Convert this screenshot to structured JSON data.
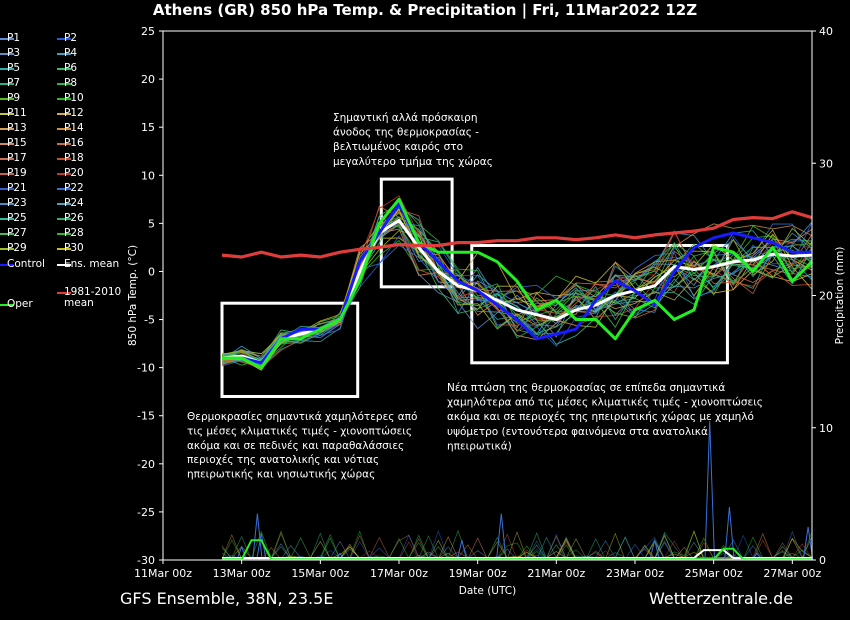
{
  "header": {
    "title": "Athens  (GR)  850 hPa Temp. & Precipitation | Fri, 11Mar2022 12Z"
  },
  "footer": {
    "left": "GFS Ensemble, 38N, 23.5E",
    "right": "Wetterzentrale.de"
  },
  "legend": {
    "members": [
      {
        "label": "P1",
        "color": "#5b8dd9"
      },
      {
        "label": "P2",
        "color": "#2a5bd7"
      },
      {
        "label": "P3",
        "color": "#5e8ec9"
      },
      {
        "label": "P4",
        "color": "#3aa0c8"
      },
      {
        "label": "P5",
        "color": "#2cb0b0"
      },
      {
        "label": "P6",
        "color": "#36c070"
      },
      {
        "label": "P7",
        "color": "#25b48a"
      },
      {
        "label": "P8",
        "color": "#2fb84a"
      },
      {
        "label": "P9",
        "color": "#4cc020"
      },
      {
        "label": "P10",
        "color": "#22c022"
      },
      {
        "label": "P11",
        "color": "#c8c840"
      },
      {
        "label": "P12",
        "color": "#d0b040"
      },
      {
        "label": "P13",
        "color": "#d8a050"
      },
      {
        "label": "P14",
        "color": "#d09040"
      },
      {
        "label": "P15",
        "color": "#d88860"
      },
      {
        "label": "P16",
        "color": "#c87040"
      },
      {
        "label": "P17",
        "color": "#d07050"
      },
      {
        "label": "P18",
        "color": "#c85030"
      },
      {
        "label": "P19",
        "color": "#d06040"
      },
      {
        "label": "P20",
        "color": "#c03830"
      },
      {
        "label": "P21",
        "color": "#3060d0"
      },
      {
        "label": "P22",
        "color": "#3a70d8"
      },
      {
        "label": "P23",
        "color": "#4090d0"
      },
      {
        "label": "P24",
        "color": "#50a0c0"
      },
      {
        "label": "P25",
        "color": "#30c0a0"
      },
      {
        "label": "P26",
        "color": "#30b070"
      },
      {
        "label": "P27",
        "color": "#40c050"
      },
      {
        "label": "P28",
        "color": "#30b830"
      },
      {
        "label": "P29",
        "color": "#a0c020"
      },
      {
        "label": "P30",
        "color": "#c8c020"
      }
    ],
    "control": {
      "label": "Control",
      "color": "#1a1aff"
    },
    "ens_mean": {
      "label": "Ens. mean",
      "color": "#ffffff"
    },
    "oper": {
      "label": "Oper",
      "color": "#22ee22"
    },
    "clim": {
      "label_line1": "1981-2010",
      "label_line2": "mean",
      "color": "#e03c3c"
    }
  },
  "chart_data": {
    "type": "line",
    "title": "Athens  (GR)  850 hPa Temp. & Precipitation | Fri, 11Mar2022 12Z",
    "xlabel": "Date (UTC)",
    "ylabel": "850 hPa Temp. (°C)",
    "y2label": "Precipitation (mm)",
    "x_ticks": [
      "11Mar 00z",
      "13Mar 00z",
      "15Mar 00z",
      "17Mar 00z",
      "19Mar 00z",
      "21Mar 00z",
      "23Mar 00z",
      "25Mar 00z",
      "27Mar 00z"
    ],
    "x_range_days": [
      0,
      16.5
    ],
    "ylim": [
      -30,
      25
    ],
    "y_ticks": [
      25,
      20,
      15,
      10,
      5,
      0,
      -5,
      -10,
      -15,
      -20,
      -25,
      -30
    ],
    "y2lim": [
      0,
      40
    ],
    "y2_ticks": [
      40,
      30,
      20,
      10,
      0
    ],
    "grid": false,
    "legend_position": "left",
    "series": [
      {
        "name": "Ens. mean",
        "role": "mean",
        "color": "#ffffff",
        "points": [
          [
            1.5,
            -9
          ],
          [
            2,
            -8.8
          ],
          [
            2.5,
            -9.5
          ],
          [
            3,
            -7
          ],
          [
            3.5,
            -6.5
          ],
          [
            4,
            -6
          ],
          [
            4.5,
            -5
          ],
          [
            5,
            0
          ],
          [
            5.5,
            4
          ],
          [
            6,
            5.3
          ],
          [
            6.5,
            2.5
          ],
          [
            7,
            0
          ],
          [
            7.5,
            -1.5
          ],
          [
            8,
            -2
          ],
          [
            8.5,
            -3
          ],
          [
            9,
            -4
          ],
          [
            9.5,
            -4.5
          ],
          [
            10,
            -5
          ],
          [
            10.5,
            -4
          ],
          [
            11,
            -3.5
          ],
          [
            11.5,
            -2.5
          ],
          [
            12,
            -2
          ],
          [
            12.5,
            -1.5
          ],
          [
            13,
            0.5
          ],
          [
            13.5,
            0.2
          ],
          [
            14,
            0.5
          ],
          [
            14.5,
            1
          ],
          [
            15,
            1.2
          ],
          [
            15.5,
            1.8
          ],
          [
            16,
            1.6
          ],
          [
            16.5,
            1.7
          ]
        ]
      },
      {
        "name": "Control",
        "role": "control",
        "color": "#1a1aff",
        "points": [
          [
            1.5,
            -9
          ],
          [
            2,
            -9
          ],
          [
            2.5,
            -9.5
          ],
          [
            3,
            -7
          ],
          [
            3.5,
            -6
          ],
          [
            4,
            -6
          ],
          [
            4.5,
            -5
          ],
          [
            5,
            1
          ],
          [
            5.5,
            4
          ],
          [
            6,
            7
          ],
          [
            6.5,
            3
          ],
          [
            7,
            1
          ],
          [
            7.5,
            -1
          ],
          [
            8,
            -2
          ],
          [
            8.5,
            -3.5
          ],
          [
            9,
            -5
          ],
          [
            9.5,
            -7
          ],
          [
            10,
            -6.5
          ],
          [
            10.5,
            -6
          ],
          [
            11,
            -3
          ],
          [
            11.5,
            -1
          ],
          [
            12,
            -2
          ],
          [
            12.5,
            -3.5
          ],
          [
            13,
            0
          ],
          [
            13.5,
            2.5
          ],
          [
            14,
            3.5
          ],
          [
            14.5,
            4
          ],
          [
            15,
            3.5
          ],
          [
            15.5,
            3
          ],
          [
            16,
            2
          ],
          [
            16.5,
            2
          ]
        ]
      },
      {
        "name": "Oper",
        "role": "oper",
        "color": "#22ee22",
        "points": [
          [
            1.5,
            -9
          ],
          [
            2,
            -9
          ],
          [
            2.5,
            -10
          ],
          [
            3,
            -7
          ],
          [
            3.5,
            -7
          ],
          [
            4,
            -6
          ],
          [
            4.5,
            -5
          ],
          [
            5,
            -1
          ],
          [
            5.5,
            5
          ],
          [
            6,
            7.5
          ],
          [
            6.5,
            3
          ],
          [
            7,
            2
          ],
          [
            7.5,
            2
          ],
          [
            8,
            2
          ],
          [
            8.5,
            1
          ],
          [
            9,
            -1
          ],
          [
            9.5,
            -4
          ],
          [
            10,
            -3
          ],
          [
            10.5,
            -5
          ],
          [
            11,
            -5
          ],
          [
            11.5,
            -7
          ],
          [
            12,
            -4
          ],
          [
            12.5,
            -3
          ],
          [
            13,
            -5
          ],
          [
            13.5,
            -4
          ],
          [
            14,
            2.5
          ],
          [
            14.5,
            2
          ],
          [
            15,
            0
          ],
          [
            15.5,
            2.5
          ],
          [
            16,
            -1
          ],
          [
            16.5,
            1
          ]
        ]
      },
      {
        "name": "1981-2010 mean",
        "role": "clim",
        "color": "#e03c3c",
        "points": [
          [
            1.5,
            1.7
          ],
          [
            2,
            1.5
          ],
          [
            2.5,
            2
          ],
          [
            3,
            1.5
          ],
          [
            3.5,
            1.7
          ],
          [
            4,
            1.5
          ],
          [
            4.5,
            2
          ],
          [
            5,
            2.3
          ],
          [
            5.5,
            2.5
          ],
          [
            6,
            2.8
          ],
          [
            6.5,
            2.7
          ],
          [
            7,
            2.7
          ],
          [
            7.5,
            3
          ],
          [
            8,
            3
          ],
          [
            8.5,
            3.2
          ],
          [
            9,
            3.2
          ],
          [
            9.5,
            3.5
          ],
          [
            10,
            3.5
          ],
          [
            10.5,
            3.3
          ],
          [
            11,
            3.5
          ],
          [
            11.5,
            3.8
          ],
          [
            12,
            3.5
          ],
          [
            12.5,
            3.8
          ],
          [
            13,
            4
          ],
          [
            13.5,
            4.2
          ],
          [
            14,
            4.5
          ],
          [
            14.5,
            5.4
          ],
          [
            15,
            5.6
          ],
          [
            15.5,
            5.5
          ],
          [
            16,
            6.2
          ],
          [
            16.5,
            5.6
          ]
        ]
      }
    ],
    "precipitation_mm": [
      {
        "day": 2,
        "value": 1
      },
      {
        "day": 2.4,
        "value": 3.5
      },
      {
        "day": 2.5,
        "value": 2
      },
      {
        "day": 4.5,
        "value": 0.5
      },
      {
        "day": 7.6,
        "value": 1.5
      },
      {
        "day": 8.6,
        "value": 3.5
      },
      {
        "day": 12.5,
        "value": 1.5
      },
      {
        "day": 13.9,
        "value": 10.5
      },
      {
        "day": 14.4,
        "value": 4
      },
      {
        "day": 15.1,
        "value": 0.5
      },
      {
        "day": 16.4,
        "value": 2.5
      }
    ],
    "annotations": [
      {
        "id": "cold",
        "text": [
          "Θερμοκρασίες σημαντικά χαμηλότερες από",
          "τις μέσες κλιματικές τιμές - χιονοπτώσεις",
          "ακόμα και σε πεδινές και παραθαλάσσιες",
          "περιοχές της ανατολικής και νότιας",
          "ηπειρωτικής και νησιωτικής χώρας"
        ]
      },
      {
        "id": "warm",
        "text": [
          "Σημαντική αλλά πρόσκαιρη",
          "άνοδος της θερμοκρασίας -",
          "βελτιωμένος καιρός στο",
          "μεγαλύτερο τμήμα της χώρας"
        ]
      },
      {
        "id": "drop",
        "text": [
          "Νέα πτώση της θερμοκρασίας σε επίπεδα σημαντικά",
          "χαμηλότερα από τις μέσες κλιματικές τιμές - χιονοπτώσεις",
          "ακόμα και σε περιοχές της ηπειρωτικής χώρας με χαμηλό",
          "υψόμετρο (εντονότερα φαινόμενα στα ανατολικά",
          "ηπειρωτικά)"
        ]
      }
    ],
    "highlight_boxes": [
      {
        "id": "cold",
        "x_days": [
          1.5,
          4.95
        ],
        "y_temp": [
          -13,
          -3.3
        ]
      },
      {
        "id": "warm",
        "x_days": [
          5.55,
          7.35
        ],
        "y_temp": [
          -1.6,
          9.6
        ]
      },
      {
        "id": "drop",
        "x_days": [
          7.85,
          14.35
        ],
        "y_temp": [
          -9.5,
          2.7
        ]
      }
    ]
  }
}
